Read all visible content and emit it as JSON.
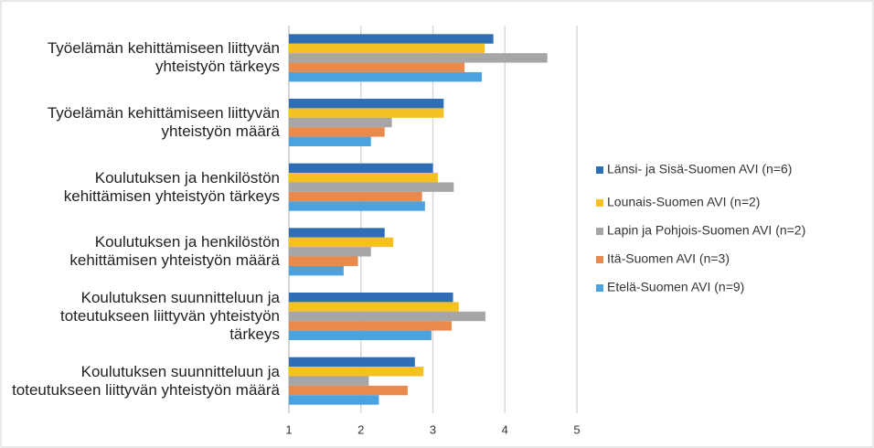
{
  "chart_data": {
    "type": "bar",
    "orientation": "horizontal",
    "categories": [
      "Työelämän kehittämiseen liittyvän yhteistyön tärkeys",
      "Työelämän kehittämiseen liittyvän yhteistyön määrä",
      "Koulutuksen ja henkilöstön kehittämisen yhteistyön tärkeys",
      "Koulutuksen ja henkilöstön kehittämisen yhteistyön määrä",
      "Koulutuksen suunnitteluun ja toteutukseen liittyvän yhteistyön tärkeys",
      "Koulutuksen suunnitteluun ja toteutukseen liittyvän yhteistyön määrä"
    ],
    "series": [
      {
        "name": "Länsi- ja Sisä-Suomen AVI (n=6)",
        "color": "#2f6eb5",
        "values": [
          3.84,
          3.15,
          3.0,
          2.33,
          3.28,
          2.75
        ]
      },
      {
        "name": "Lounais-Suomen AVI (n=2)",
        "color": "#f5c022",
        "values": [
          3.72,
          3.15,
          3.07,
          2.45,
          3.36,
          2.87
        ]
      },
      {
        "name": "Lapin ja Pohjois-Suomen AVI (n=2)",
        "color": "#a6a6a6",
        "values": [
          4.59,
          2.43,
          3.29,
          2.14,
          3.73,
          2.11
        ]
      },
      {
        "name": "Itä-Suomen AVI (n=3)",
        "color": "#e98a4c",
        "values": [
          3.44,
          2.33,
          2.85,
          1.96,
          3.26,
          2.65
        ]
      },
      {
        "name": "Etelä-Suomen AVI (n=9)",
        "color": "#4aa3df",
        "values": [
          3.68,
          2.14,
          2.89,
          1.76,
          2.98,
          2.25
        ]
      }
    ],
    "xlim": [
      1,
      5
    ],
    "xticks": [
      1,
      2,
      3,
      4,
      5
    ],
    "grid": true,
    "legend": "right"
  }
}
